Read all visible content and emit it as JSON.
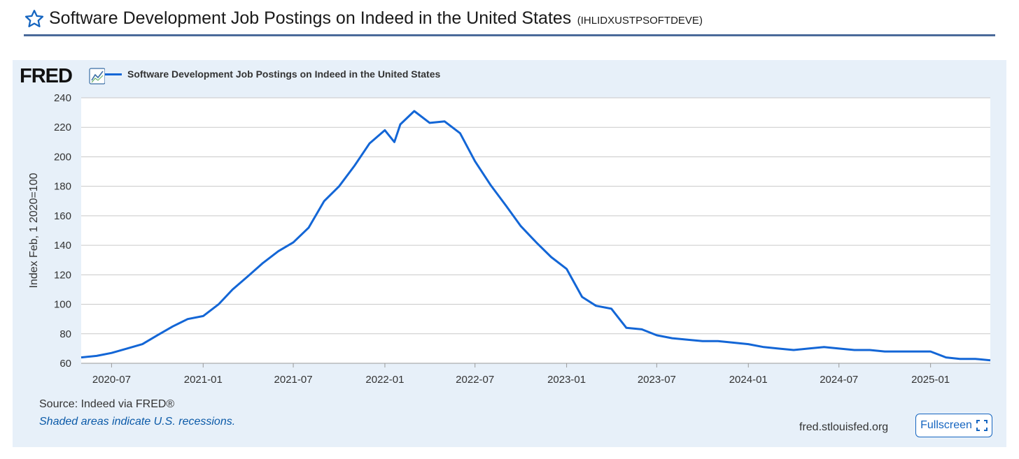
{
  "header": {
    "title": "Software Development Job Postings on Indeed in the United States",
    "series_id": "(IHLIDXUSTPSOFTDEVE)"
  },
  "icons": {
    "favorite": "star-icon",
    "logo": "fred-logo",
    "chart_badge": "line-chart-icon",
    "fullscreen": "fullscreen-icon"
  },
  "colors": {
    "line": "#1366d6",
    "panel": "#e7f0f9",
    "accent": "#1565c0"
  },
  "chart_data": {
    "type": "line",
    "title": "",
    "ylabel": "Index Feb, 1 2020=100",
    "xlabel": "",
    "ylim": [
      60,
      240
    ],
    "yticks": [
      60,
      80,
      100,
      120,
      140,
      160,
      180,
      200,
      220,
      240
    ],
    "xticks": [
      "2020-07",
      "2021-01",
      "2021-07",
      "2022-01",
      "2022-07",
      "2023-01",
      "2023-07",
      "2024-01",
      "2024-07",
      "2025-01"
    ],
    "xrange": [
      "2020-05-01",
      "2025-05-01"
    ],
    "grid": true,
    "legend_position": "top-left",
    "series": [
      {
        "name": "Software Development Job Postings on Indeed in the United States",
        "x": [
          "2020-05-01",
          "2020-06-01",
          "2020-07-01",
          "2020-08-01",
          "2020-09-01",
          "2020-10-01",
          "2020-11-01",
          "2020-12-01",
          "2021-01-01",
          "2021-02-01",
          "2021-03-01",
          "2021-04-01",
          "2021-05-01",
          "2021-06-01",
          "2021-07-01",
          "2021-08-01",
          "2021-09-01",
          "2021-10-01",
          "2021-11-01",
          "2021-12-01",
          "2022-01-01",
          "2022-01-20",
          "2022-02-01",
          "2022-03-01",
          "2022-04-01",
          "2022-05-01",
          "2022-06-01",
          "2022-07-01",
          "2022-08-01",
          "2022-09-01",
          "2022-10-01",
          "2022-11-01",
          "2022-12-01",
          "2023-01-01",
          "2023-02-01",
          "2023-03-01",
          "2023-04-01",
          "2023-05-01",
          "2023-06-01",
          "2023-07-01",
          "2023-08-01",
          "2023-09-01",
          "2023-10-01",
          "2023-11-01",
          "2023-12-01",
          "2024-01-01",
          "2024-02-01",
          "2024-03-01",
          "2024-04-01",
          "2024-05-01",
          "2024-06-01",
          "2024-07-01",
          "2024-08-01",
          "2024-09-01",
          "2024-10-01",
          "2024-11-01",
          "2024-12-01",
          "2025-01-01",
          "2025-02-01",
          "2025-03-01",
          "2025-04-01",
          "2025-05-01"
        ],
        "values": [
          64,
          65,
          67,
          70,
          73,
          79,
          85,
          90,
          92,
          100,
          110,
          119,
          128,
          136,
          142,
          152,
          170,
          180,
          194,
          209,
          218,
          210,
          222,
          231,
          223,
          224,
          216,
          197,
          181,
          167,
          153,
          142,
          132,
          124,
          105,
          99,
          97,
          84,
          83,
          79,
          77,
          76,
          75,
          75,
          74,
          73,
          71,
          70,
          69,
          70,
          71,
          70,
          69,
          69,
          68,
          68,
          68,
          68,
          64,
          63,
          63,
          62
        ]
      }
    ]
  },
  "footer": {
    "source": "Source: Indeed via FRED®",
    "recession_note": "Shaded areas indicate U.S. recessions.",
    "site": "fred.stlouisfed.org",
    "fullscreen_label": "Fullscreen"
  }
}
